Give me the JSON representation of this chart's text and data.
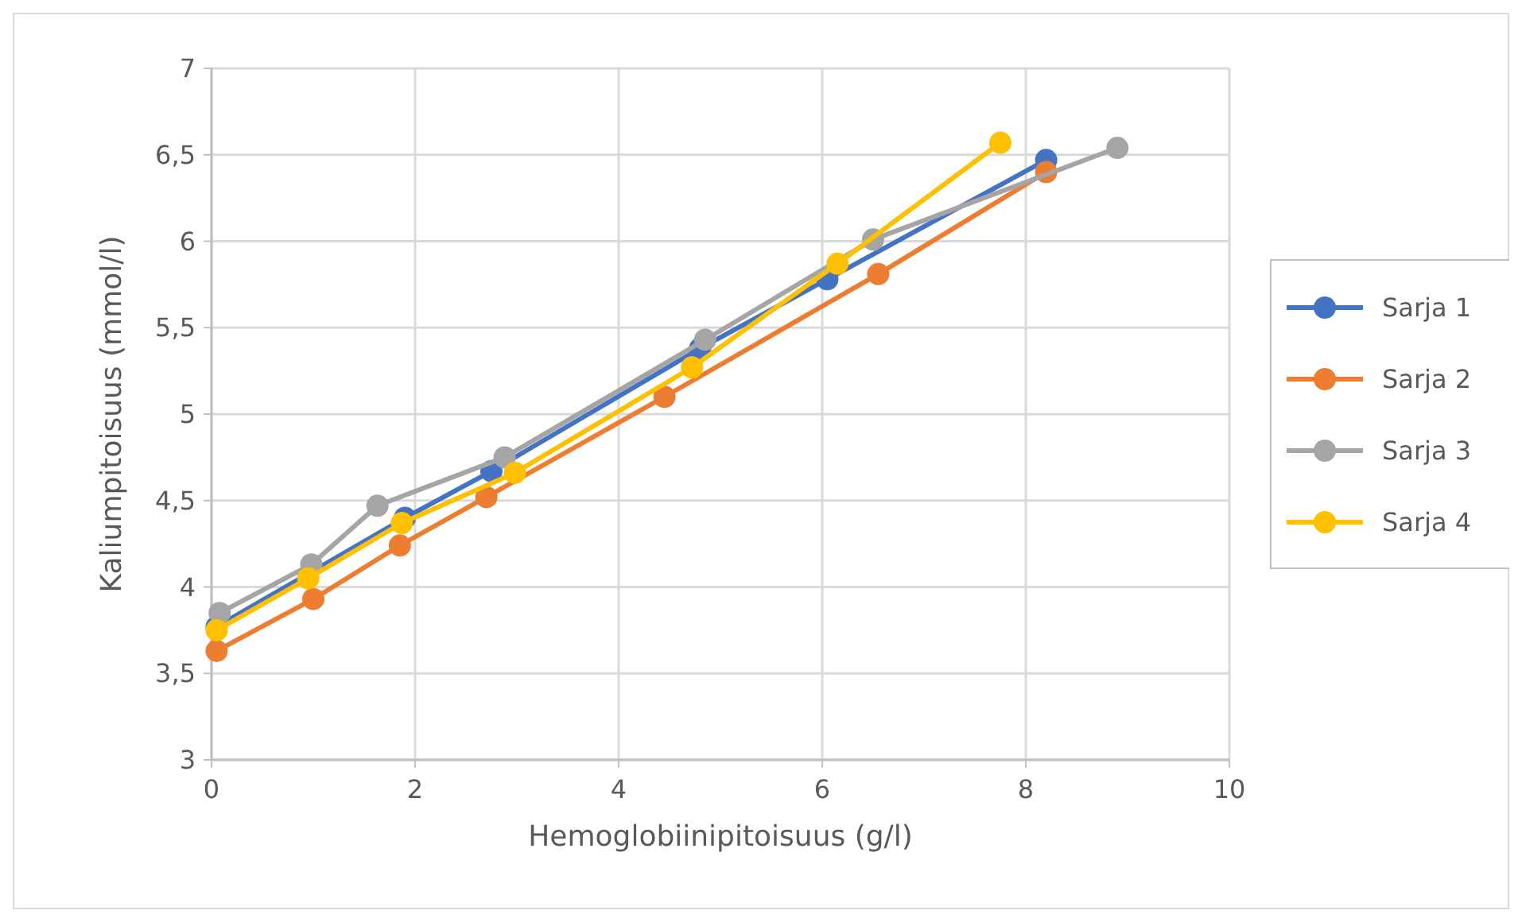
{
  "chart_data": {
    "type": "line",
    "xlabel": "Hemoglobiinipitoisuus (g/l)",
    "ylabel": "Kaliumpitoisuus (mmol/l)",
    "xlim": [
      0,
      10
    ],
    "xticks": [
      0,
      2,
      4,
      6,
      8,
      10
    ],
    "ylim": [
      3,
      7
    ],
    "yticks": [
      3,
      {
        "value": 3.5,
        "label": "3,5"
      },
      4,
      {
        "value": 4.5,
        "label": "4,5"
      },
      5,
      {
        "value": 5.5,
        "label": "5,5"
      },
      6,
      {
        "value": 6.5,
        "label": "6,5"
      },
      7
    ],
    "grid": true,
    "legend": "right",
    "marker": "circle",
    "line_style": "solid",
    "series": [
      {
        "name": "Sarja 1",
        "color": "#4472c4",
        "x": [
          0.05,
          1.9,
          2.75,
          4.8,
          6.05,
          8.2
        ],
        "values": [
          3.77,
          4.4,
          4.67,
          5.38,
          5.78,
          6.47
        ]
      },
      {
        "name": "Sarja 2",
        "color": "#ed7d31",
        "x": [
          0.05,
          1.0,
          1.85,
          2.7,
          4.45,
          6.55,
          8.2
        ],
        "values": [
          3.63,
          3.93,
          4.24,
          4.52,
          5.1,
          5.81,
          6.4
        ]
      },
      {
        "name": "Sarja 3",
        "color": "#a5a5a5",
        "x": [
          0.08,
          0.98,
          1.63,
          2.88,
          4.85,
          6.5,
          8.9
        ],
        "values": [
          3.85,
          4.13,
          4.47,
          4.75,
          5.43,
          6.01,
          6.54
        ]
      },
      {
        "name": "Sarja 4",
        "color": "#ffc000",
        "x": [
          0.05,
          0.95,
          1.87,
          2.98,
          4.72,
          6.15,
          7.75
        ],
        "values": [
          3.75,
          4.05,
          4.37,
          4.66,
          5.27,
          5.87,
          6.57
        ]
      }
    ]
  }
}
